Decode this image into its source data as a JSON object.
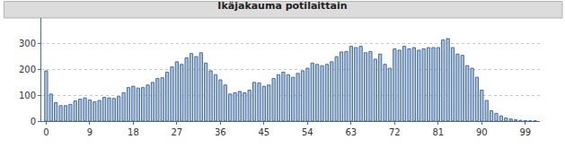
{
  "chart_data": {
    "type": "bar",
    "title": "Ikäjakauma potilaittain",
    "x": [
      0,
      1,
      2,
      3,
      4,
      5,
      6,
      7,
      8,
      9,
      10,
      11,
      12,
      13,
      14,
      15,
      16,
      17,
      18,
      19,
      20,
      21,
      22,
      23,
      24,
      25,
      26,
      27,
      28,
      29,
      30,
      31,
      32,
      33,
      34,
      35,
      36,
      37,
      38,
      39,
      40,
      41,
      42,
      43,
      44,
      45,
      46,
      47,
      48,
      49,
      50,
      51,
      52,
      53,
      54,
      55,
      56,
      57,
      58,
      59,
      60,
      61,
      62,
      63,
      64,
      65,
      66,
      67,
      68,
      69,
      70,
      71,
      72,
      73,
      74,
      75,
      76,
      77,
      78,
      79,
      80,
      81,
      82,
      83,
      84,
      85,
      86,
      87,
      88,
      89,
      90,
      91,
      92,
      93,
      94,
      95,
      96,
      97,
      98,
      99,
      100,
      101
    ],
    "values": [
      195,
      105,
      72,
      60,
      60,
      65,
      78,
      85,
      90,
      82,
      75,
      80,
      92,
      90,
      88,
      95,
      110,
      130,
      135,
      128,
      130,
      140,
      150,
      165,
      168,
      190,
      210,
      230,
      220,
      245,
      262,
      250,
      265,
      225,
      195,
      180,
      160,
      140,
      105,
      110,
      115,
      110,
      120,
      150,
      148,
      135,
      140,
      165,
      180,
      190,
      180,
      170,
      185,
      195,
      205,
      225,
      220,
      215,
      220,
      230,
      250,
      268,
      270,
      290,
      285,
      290,
      265,
      270,
      240,
      260,
      220,
      205,
      280,
      275,
      290,
      280,
      285,
      275,
      280,
      285,
      285,
      285,
      315,
      320,
      285,
      260,
      255,
      215,
      205,
      170,
      120,
      80,
      40,
      30,
      20,
      12,
      8,
      5,
      3,
      2,
      1,
      1
    ],
    "color": "#a9c3e3",
    "xlim": [
      -1,
      102
    ],
    "xticks": [
      0,
      9,
      18,
      27,
      36,
      45,
      54,
      63,
      72,
      81,
      90,
      99
    ],
    "ylim": [
      0,
      400
    ],
    "yticks": [
      0,
      100,
      200,
      300
    ],
    "grid": true
  }
}
